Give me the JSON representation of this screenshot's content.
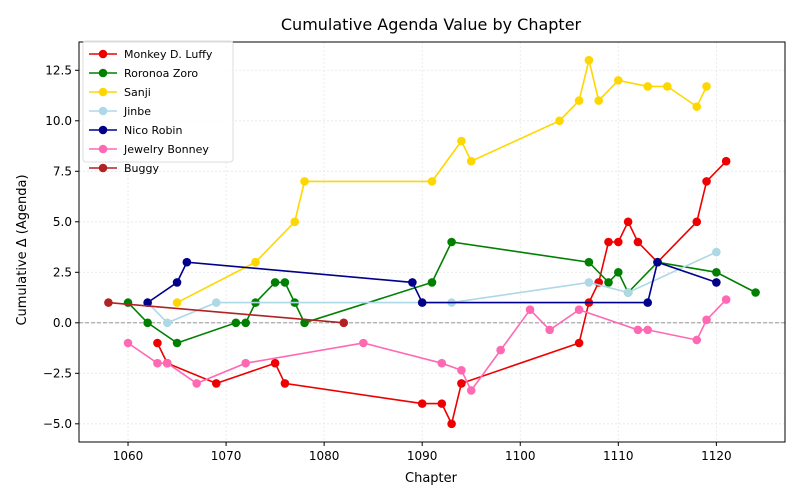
{
  "chart_data": {
    "type": "line",
    "title": "Cumulative Agenda Value by Chapter",
    "xlabel": "Chapter",
    "ylabel": "Cumulative Δ (Agenda)",
    "xlim": [
      1055,
      1127
    ],
    "ylim": [
      -5.9,
      13.9
    ],
    "xticks": [
      1060,
      1070,
      1080,
      1090,
      1100,
      1110,
      1120
    ],
    "yticks": [
      -5.0,
      -2.5,
      0.0,
      2.5,
      5.0,
      7.5,
      10.0,
      12.5
    ],
    "xtick_labels": [
      "1060",
      "1070",
      "1080",
      "1090",
      "1100",
      "1110",
      "1120"
    ],
    "ytick_labels": [
      "−5.0",
      "−2.5",
      "0.0",
      "2.5",
      "5.0",
      "7.5",
      "10.0",
      "12.5"
    ],
    "grid": true,
    "zero_line": true,
    "legend_position": "upper-left",
    "series": [
      {
        "name": "Monkey D. Luffy",
        "color": "#ee0000",
        "points": [
          [
            1063,
            -1
          ],
          [
            1064,
            -2
          ],
          [
            1069,
            -3
          ],
          [
            1075,
            -2
          ],
          [
            1076,
            -3
          ],
          [
            1090,
            -4
          ],
          [
            1092,
            -4
          ],
          [
            1093,
            -5
          ],
          [
            1094,
            -3
          ],
          [
            1106,
            -1
          ],
          [
            1107,
            1
          ],
          [
            1108,
            2
          ],
          [
            1109,
            4
          ],
          [
            1110,
            4
          ],
          [
            1111,
            5
          ],
          [
            1112,
            4
          ],
          [
            1114,
            3
          ],
          [
            1118,
            5
          ],
          [
            1119,
            7
          ],
          [
            1121,
            8
          ]
        ]
      },
      {
        "name": "Roronoa Zoro",
        "color": "#008000",
        "points": [
          [
            1060,
            1
          ],
          [
            1062,
            0
          ],
          [
            1065,
            -1
          ],
          [
            1071,
            0
          ],
          [
            1072,
            0
          ],
          [
            1073,
            1
          ],
          [
            1075,
            2
          ],
          [
            1076,
            2
          ],
          [
            1077,
            1
          ],
          [
            1078,
            0
          ],
          [
            1091,
            2
          ],
          [
            1093,
            4
          ],
          [
            1107,
            3
          ],
          [
            1109,
            2
          ],
          [
            1110,
            2.5
          ],
          [
            1111,
            1.5
          ],
          [
            1114,
            3
          ],
          [
            1120,
            2.5
          ],
          [
            1124,
            1.5
          ]
        ]
      },
      {
        "name": "Sanji",
        "color": "#ffd700",
        "points": [
          [
            1065,
            1
          ],
          [
            1073,
            3
          ],
          [
            1077,
            5
          ],
          [
            1078,
            7
          ],
          [
            1091,
            7
          ],
          [
            1094,
            9
          ],
          [
            1095,
            8
          ],
          [
            1104,
            10
          ],
          [
            1106,
            11
          ],
          [
            1107,
            13
          ],
          [
            1108,
            11
          ],
          [
            1110,
            12
          ],
          [
            1113,
            11.7
          ],
          [
            1115,
            11.7
          ],
          [
            1118,
            10.7
          ],
          [
            1119,
            11.7
          ]
        ]
      },
      {
        "name": "Jinbe",
        "color": "#add8e6",
        "points": [
          [
            1062,
            1
          ],
          [
            1064,
            0
          ],
          [
            1069,
            1
          ],
          [
            1093,
            1
          ],
          [
            1107,
            2
          ],
          [
            1111,
            1.5
          ],
          [
            1120,
            3.5
          ]
        ]
      },
      {
        "name": "Nico Robin",
        "color": "#00008b",
        "points": [
          [
            1062,
            1
          ],
          [
            1065,
            2
          ],
          [
            1066,
            3
          ],
          [
            1089,
            2
          ],
          [
            1090,
            1
          ],
          [
            1113,
            1
          ],
          [
            1114,
            3
          ],
          [
            1120,
            2
          ]
        ]
      },
      {
        "name": "Jewelry Bonney",
        "color": "#ff69b4",
        "points": [
          [
            1060,
            -1
          ],
          [
            1063,
            -2
          ],
          [
            1064,
            -2
          ],
          [
            1067,
            -3
          ],
          [
            1072,
            -2
          ],
          [
            1084,
            -1
          ],
          [
            1092,
            -2
          ],
          [
            1094,
            -2.35
          ],
          [
            1095,
            -3.35
          ],
          [
            1098,
            -1.35
          ],
          [
            1101,
            0.65
          ],
          [
            1103,
            -0.35
          ],
          [
            1106,
            0.65
          ],
          [
            1112,
            -0.35
          ],
          [
            1113,
            -0.35
          ],
          [
            1118,
            -0.85
          ],
          [
            1119,
            0.15
          ],
          [
            1121,
            1.15
          ]
        ]
      },
      {
        "name": "Buggy",
        "color": "#b22222",
        "points": [
          [
            1058,
            1
          ],
          [
            1082,
            0
          ]
        ]
      }
    ]
  }
}
